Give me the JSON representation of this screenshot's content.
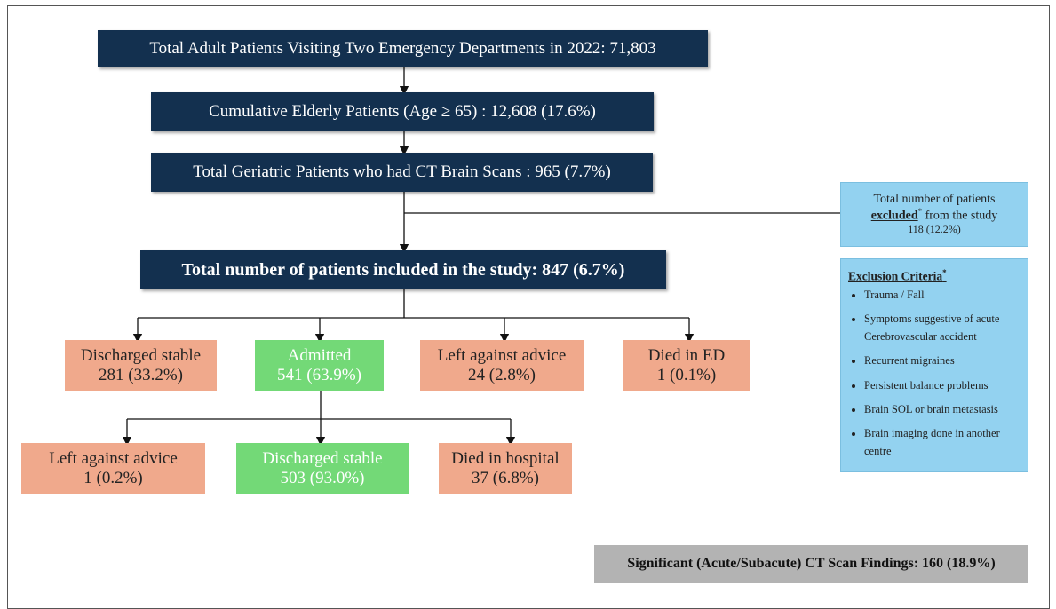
{
  "nodes": [
    {
      "text": "Total Adult Patients Visiting Two Emergency Departments in 2022: 71,803"
    },
    {
      "text": "Cumulative Elderly Patients (Age ≥ 65) : 12,608 (17.6%)"
    },
    {
      "text": "Total Geriatric Patients who had CT Brain Scans : 965 (7.7%)"
    },
    {
      "text": "Total number of patients included in the study: 847 (6.7%)"
    }
  ],
  "outcomes": [
    {
      "label": "Discharged stable",
      "value": "281 (33.2%)"
    },
    {
      "label": "Admitted",
      "value": "541 (63.9%)"
    },
    {
      "label": "Left against advice",
      "value": "24 (2.8%)"
    },
    {
      "label": "Died in ED",
      "value": "1 (0.1%)"
    }
  ],
  "admitted_outcomes": [
    {
      "label": "Left against advice",
      "value": "1 (0.2%)"
    },
    {
      "label": "Discharged stable",
      "value": "503 (93.0%)"
    },
    {
      "label": "Died in hospital",
      "value": "37 (6.8%)"
    }
  ],
  "excluded": {
    "before": "Total number of patients",
    "emphasis": "excluded",
    "mark": "*",
    "after": "from the study",
    "count": "118 (12.2%)"
  },
  "criteria": {
    "title": "Exclusion Criteria",
    "mark": "*",
    "items": [
      "Trauma / Fall",
      "Symptoms suggestive of acute Cerebrovascular accident",
      "Recurrent migraines",
      "Persistent balance problems",
      "Brain SOL or brain metastasis",
      "Brain imaging done in another centre"
    ]
  },
  "findings": "Significant (Acute/Subacute) CT Scan Findings: 160 (18.9%)"
}
